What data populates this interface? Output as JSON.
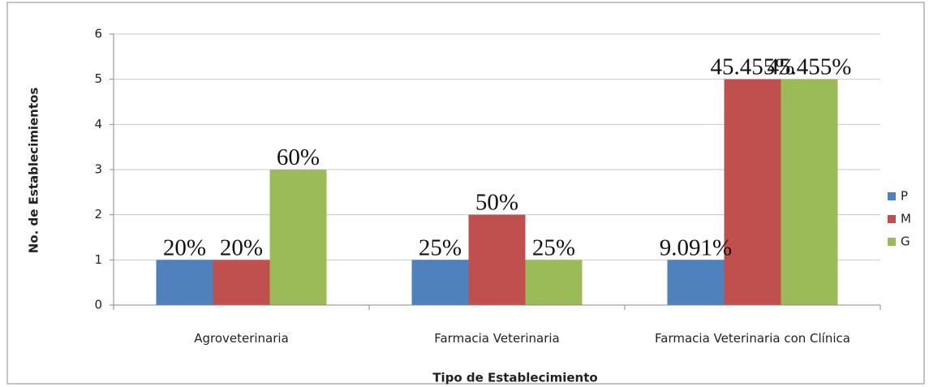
{
  "chart_data": {
    "type": "bar",
    "x_label": "Tipo de Establecimiento",
    "y_label": "No. de Establecimientos",
    "categories": [
      "Agroveterinaria",
      "Farmacia Veterinaria",
      "Farmacia Veterinaria con Clínica"
    ],
    "series": [
      {
        "name": "P",
        "color": "#4f81bd",
        "values": [
          1,
          1,
          1
        ],
        "percent_labels": [
          "20%",
          "25%",
          "9.091%"
        ]
      },
      {
        "name": "M",
        "color": "#c0504d",
        "values": [
          1,
          2,
          5
        ],
        "percent_labels": [
          "20%",
          "50%",
          "45.455%"
        ]
      },
      {
        "name": "G",
        "color": "#9bbb59",
        "values": [
          3,
          1,
          5
        ],
        "percent_labels": [
          "60%",
          "25%",
          "45.455%"
        ]
      }
    ],
    "ylim": [
      0,
      6
    ],
    "yticks": [
      0,
      1,
      2,
      3,
      4,
      5,
      6
    ],
    "grid": true,
    "legend": "right"
  }
}
